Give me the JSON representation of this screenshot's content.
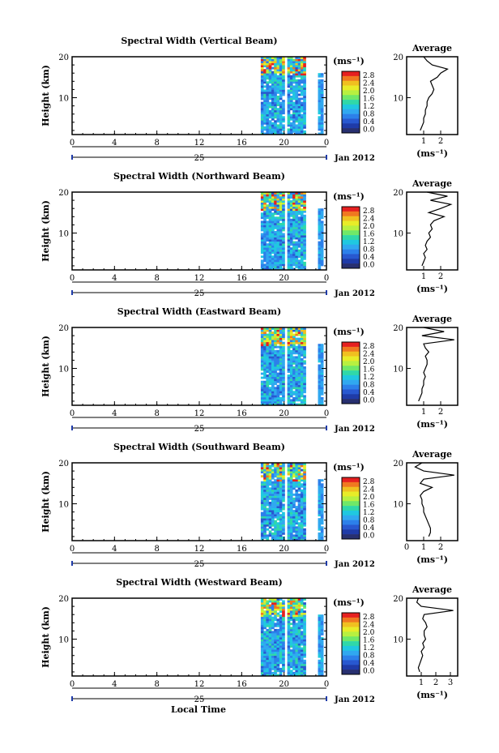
{
  "figure": {
    "x_axis_label": "Local Time",
    "colorbar_ticks": [
      "2.8",
      "2.4",
      "2.0",
      "1.6",
      "1.2",
      "0.8",
      "0.4",
      "0.0"
    ],
    "colorbar_colors": [
      "#e62020",
      "#f07820",
      "#f0c020",
      "#e8ec28",
      "#b8f040",
      "#70e868",
      "#30d8a8",
      "#20c8e0",
      "#30a8f0",
      "#2c80ea",
      "#2858d0",
      "#1f3ba8",
      "#283070"
    ]
  },
  "chart_data": [
    {
      "type": "heatmap",
      "title": "Spectral Width (Vertical Beam)",
      "ylabel": "Height (km)",
      "x_ticks": [
        "0",
        "4",
        "8",
        "12",
        "16",
        "20",
        "0"
      ],
      "xlim": [
        0,
        24
      ],
      "ylim": [
        1,
        20
      ],
      "y_ticks": [
        "20",
        "10"
      ],
      "date_day": "25",
      "date_label": "Jan 2012",
      "colorbar_label": "(ms⁻¹)",
      "colorbar_range": [
        0.0,
        3.0
      ],
      "data_time_ranges": [
        [
          17.8,
          20.0
        ],
        [
          20.3,
          22.0
        ],
        [
          23.2,
          23.6
        ]
      ],
      "profile": {
        "title": "Average",
        "xlabel": "(ms⁻¹)",
        "x_ticks": [
          "1",
          "2"
        ],
        "xlim": [
          0.0,
          3.0
        ],
        "y_ticks": [
          "20",
          "10"
        ],
        "ylim": [
          1,
          20
        ],
        "height": [
          2,
          3,
          4,
          5,
          6,
          7,
          8,
          9,
          10,
          11,
          12,
          13,
          14,
          15,
          16,
          17,
          18,
          19,
          20
        ],
        "value": [
          0.8,
          0.9,
          1.0,
          1.0,
          1.1,
          1.1,
          1.2,
          1.2,
          1.3,
          1.5,
          1.6,
          1.5,
          1.4,
          1.8,
          2.0,
          2.4,
          1.5,
          1.2,
          1.0
        ]
      }
    },
    {
      "type": "heatmap",
      "title": "Spectral Width (Northward Beam)",
      "ylabel": "Height (km)",
      "x_ticks": [
        "0",
        "4",
        "8",
        "12",
        "16",
        "20",
        "0"
      ],
      "xlim": [
        0,
        24
      ],
      "ylim": [
        1,
        20
      ],
      "y_ticks": [
        "20",
        "10"
      ],
      "date_day": "25",
      "date_label": "Jan 2012",
      "colorbar_label": "(ms⁻¹)",
      "colorbar_ticks": [
        "2.8",
        "2.4",
        "2.0",
        "1.6",
        "1.2",
        "0.8",
        "0.4",
        "0.0"
      ],
      "colorbar_range": [
        0.0,
        3.0
      ],
      "data_time_ranges": [
        [
          17.8,
          20.0
        ],
        [
          20.3,
          22.0
        ],
        [
          23.2,
          23.6
        ]
      ],
      "profile": {
        "title": "Average",
        "xlabel": "(ms⁻¹)",
        "x_ticks": [
          "1",
          "2"
        ],
        "xlim": [
          0.0,
          3.0
        ],
        "y_ticks": [
          "20",
          "10"
        ],
        "ylim": [
          1,
          20
        ],
        "height": [
          2,
          3,
          4,
          5,
          6,
          7,
          8,
          9,
          10,
          11,
          12,
          13,
          14,
          15,
          16,
          17,
          18,
          19,
          20
        ],
        "value": [
          0.9,
          1.0,
          1.1,
          1.0,
          1.2,
          1.1,
          1.2,
          1.4,
          1.3,
          1.5,
          1.4,
          1.6,
          2.2,
          1.3,
          2.0,
          2.6,
          1.4,
          2.4,
          1.2
        ]
      }
    },
    {
      "type": "heatmap",
      "title": "Spectral Width (Eastward Beam)",
      "ylabel": "Height (km)",
      "x_ticks": [
        "0",
        "4",
        "8",
        "12",
        "16",
        "20",
        "0"
      ],
      "xlim": [
        0,
        24
      ],
      "ylim": [
        1,
        20
      ],
      "y_ticks": [
        "20",
        "10"
      ],
      "date_day": "25",
      "date_label": "Jan 2012",
      "colorbar_label": "(ms⁻¹)",
      "colorbar_ticks": [
        "2.8",
        "2.4",
        "2.0",
        "1.6",
        "1.2",
        "0.8",
        "0.4",
        "0.0"
      ],
      "colorbar_range": [
        0.0,
        3.0
      ],
      "data_time_ranges": [
        [
          17.8,
          20.0
        ],
        [
          20.3,
          22.0
        ],
        [
          23.2,
          23.6
        ]
      ],
      "profile": {
        "title": "Average",
        "xlabel": "(ms⁻¹)",
        "x_ticks": [
          "1",
          "2"
        ],
        "xlim": [
          0.0,
          3.0
        ],
        "y_ticks": [
          "20",
          "10"
        ],
        "ylim": [
          1,
          20
        ],
        "height": [
          2,
          3,
          4,
          5,
          6,
          7,
          8,
          9,
          10,
          11,
          12,
          13,
          14,
          15,
          16,
          17,
          18,
          19,
          20
        ],
        "value": [
          0.7,
          0.8,
          0.9,
          0.9,
          1.0,
          1.0,
          1.1,
          1.0,
          1.1,
          1.2,
          1.2,
          1.1,
          1.3,
          1.1,
          1.0,
          2.8,
          0.9,
          2.2,
          1.0
        ]
      }
    },
    {
      "type": "heatmap",
      "title": "Spectral Width (Southward Beam)",
      "ylabel": "Height (km)",
      "x_ticks": [
        "0",
        "4",
        "8",
        "12",
        "16",
        "20",
        "0"
      ],
      "xlim": [
        0,
        24
      ],
      "ylim": [
        1,
        20
      ],
      "y_ticks": [
        "20",
        "10"
      ],
      "date_day": "25",
      "date_label": "Jan 2012",
      "colorbar_label": "(ms⁻¹)",
      "colorbar_ticks": [
        "2.8",
        "2.4",
        "2.0",
        "1.6",
        "1.2",
        "0.8",
        "0.4",
        "0.0"
      ],
      "colorbar_range": [
        0.0,
        3.0
      ],
      "data_time_ranges": [
        [
          17.8,
          20.0
        ],
        [
          20.3,
          22.0
        ],
        [
          23.2,
          23.6
        ]
      ],
      "profile": {
        "title": "Average",
        "xlabel": "(ms⁻¹)",
        "x_ticks": [
          "0",
          "1",
          "2"
        ],
        "xlim": [
          0.0,
          3.0
        ],
        "y_ticks": [
          "20",
          "10"
        ],
        "ylim": [
          1,
          20
        ],
        "height": [
          2,
          3,
          4,
          5,
          6,
          7,
          8,
          9,
          10,
          11,
          12,
          13,
          14,
          15,
          16,
          17,
          18,
          19,
          20
        ],
        "value": [
          1.3,
          1.4,
          1.4,
          1.3,
          1.2,
          1.1,
          1.0,
          1.0,
          0.9,
          0.9,
          0.8,
          1.0,
          1.5,
          0.8,
          1.0,
          2.8,
          1.0,
          0.5,
          0.9
        ]
      }
    },
    {
      "type": "heatmap",
      "title": "Spectral Width (Westward Beam)",
      "ylabel": "Height (km)",
      "x_ticks": [
        "0",
        "4",
        "8",
        "12",
        "16",
        "20",
        "0"
      ],
      "xlim": [
        0,
        24
      ],
      "ylim": [
        1,
        20
      ],
      "y_ticks": [
        "20",
        "10"
      ],
      "date_day": "25",
      "date_label": "Jan 2012",
      "colorbar_label": "(ms⁻¹)",
      "colorbar_ticks": [
        "2.8",
        "2.4",
        "2.0",
        "1.6",
        "1.2",
        "0.8",
        "0.4",
        "0.0"
      ],
      "colorbar_range": [
        0.0,
        3.0
      ],
      "data_time_ranges": [
        [
          17.8,
          20.0
        ],
        [
          20.3,
          22.0
        ],
        [
          23.2,
          23.6
        ]
      ],
      "profile": {
        "title": "Average",
        "xlabel": "(ms⁻¹)",
        "x_ticks": [
          "1",
          "2",
          "3"
        ],
        "xlim": [
          0.0,
          3.5
        ],
        "y_ticks": [
          "20",
          "10"
        ],
        "ylim": [
          1,
          20
        ],
        "height": [
          2,
          3,
          4,
          5,
          6,
          7,
          8,
          9,
          10,
          11,
          12,
          13,
          14,
          15,
          16,
          17,
          18,
          19,
          20
        ],
        "value": [
          0.9,
          0.8,
          0.9,
          1.0,
          1.1,
          1.0,
          1.2,
          1.1,
          1.3,
          1.2,
          1.2,
          1.4,
          1.3,
          1.1,
          1.2,
          3.2,
          1.0,
          0.7,
          0.8
        ]
      }
    }
  ]
}
